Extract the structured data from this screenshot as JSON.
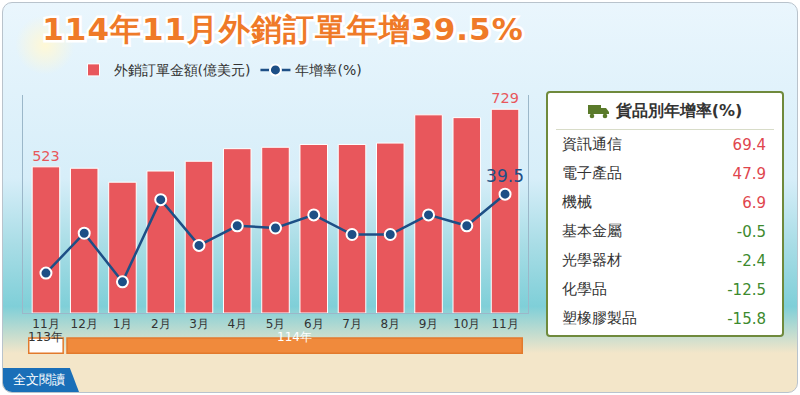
{
  "chart_data": {
    "type": "bar",
    "title": "114年11月外銷訂單年增39.5%",
    "categories": [
      "11月",
      "12月",
      "1月",
      "2月",
      "3月",
      "4月",
      "5月",
      "6月",
      "7月",
      "8月",
      "9月",
      "10月",
      "11月"
    ],
    "series": [
      {
        "name": "外銷訂單金額(億美元)",
        "type": "bar",
        "color": "#e8575c",
        "values": [
          523,
          518,
          468,
          508,
          543,
          588,
          593,
          603,
          603,
          608,
          709,
          699,
          729
        ],
        "value_labels": [
          "523",
          null,
          null,
          null,
          null,
          null,
          null,
          null,
          null,
          null,
          null,
          null,
          "729"
        ]
      },
      {
        "name": "年增率(%)",
        "type": "line",
        "axis": "y2",
        "color": "#1d4f86",
        "marker": "circle",
        "values": [
          3.3,
          21.6,
          -0.7,
          37,
          16,
          25,
          24,
          30,
          21,
          21,
          30,
          25,
          39.5
        ],
        "value_labels": [
          null,
          null,
          null,
          null,
          null,
          null,
          null,
          null,
          null,
          null,
          null,
          null,
          "39.5"
        ]
      }
    ],
    "ylim": [
      0,
      780
    ],
    "y2lim": [
      -15,
      85
    ],
    "tick_labels": "x",
    "legend": "top left",
    "data_labels": true,
    "year_groups": [
      {
        "label": "113年",
        "count": 1
      },
      {
        "label": "114年",
        "count": 12
      }
    ]
  },
  "panel": {
    "title": "貨品別年增率(%)",
    "rows": [
      {
        "label": "資訊通信",
        "value": 69.4
      },
      {
        "label": "電子產品",
        "value": 47.9
      },
      {
        "label": "機械",
        "value": 6.9
      },
      {
        "label": "基本金屬",
        "value": -0.5
      },
      {
        "label": "光學器材",
        "value": -2.4
      },
      {
        "label": "化學品",
        "value": -12.5
      },
      {
        "label": "塑橡膠製品",
        "value": -15.8
      }
    ]
  },
  "link_text": "全文閱讀"
}
